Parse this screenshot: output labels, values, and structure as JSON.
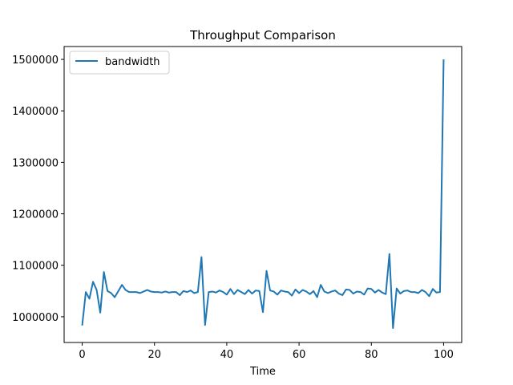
{
  "chart_data": {
    "type": "line",
    "title": "Throughput Comparison",
    "xlabel": "Time",
    "ylabel": "",
    "xlim": [
      -5,
      105
    ],
    "ylim": [
      950000,
      1525000
    ],
    "xticks": [
      0,
      20,
      40,
      60,
      80,
      100
    ],
    "xtick_labels": [
      "0",
      "20",
      "40",
      "60",
      "80",
      "100"
    ],
    "yticks": [
      1000000,
      1100000,
      1200000,
      1300000,
      1400000,
      1500000
    ],
    "ytick_labels": [
      "1000000",
      "1100000",
      "1200000",
      "1300000",
      "1400000",
      "1500000"
    ],
    "legend": {
      "position": "top-left"
    },
    "grid": false,
    "series": [
      {
        "name": "bandwidth",
        "color": "#1f77b4",
        "x": [
          0,
          1,
          2,
          3,
          4,
          5,
          6,
          7,
          8,
          9,
          10,
          11,
          12,
          13,
          14,
          15,
          16,
          17,
          18,
          19,
          20,
          21,
          22,
          23,
          24,
          25,
          26,
          27,
          28,
          29,
          30,
          31,
          32,
          33,
          34,
          35,
          36,
          37,
          38,
          39,
          40,
          41,
          42,
          43,
          44,
          45,
          46,
          47,
          48,
          49,
          50,
          51,
          52,
          53,
          54,
          55,
          56,
          57,
          58,
          59,
          60,
          61,
          62,
          63,
          64,
          65,
          66,
          67,
          68,
          69,
          70,
          71,
          72,
          73,
          74,
          75,
          76,
          77,
          78,
          79,
          80,
          81,
          82,
          83,
          84,
          85,
          86,
          87,
          88,
          89,
          90,
          91,
          92,
          93,
          94,
          95,
          96,
          97,
          98,
          99,
          100
        ],
        "y": [
          983000,
          1048000,
          1035000,
          1068000,
          1052000,
          1008000,
          1087000,
          1050000,
          1046000,
          1038000,
          1050000,
          1062000,
          1052000,
          1048000,
          1048000,
          1048000,
          1046000,
          1049000,
          1052000,
          1049000,
          1048000,
          1048000,
          1047000,
          1049000,
          1047000,
          1048000,
          1048000,
          1042000,
          1050000,
          1048000,
          1051000,
          1046000,
          1048000,
          1116000,
          984000,
          1048000,
          1049000,
          1047000,
          1051000,
          1048000,
          1043000,
          1054000,
          1044000,
          1052000,
          1048000,
          1044000,
          1052000,
          1045000,
          1051000,
          1050000,
          1009000,
          1089000,
          1051000,
          1049000,
          1043000,
          1051000,
          1049000,
          1048000,
          1041000,
          1053000,
          1046000,
          1052000,
          1049000,
          1044000,
          1050000,
          1038000,
          1062000,
          1049000,
          1046000,
          1049000,
          1051000,
          1045000,
          1042000,
          1053000,
          1052000,
          1045000,
          1049000,
          1048000,
          1043000,
          1055000,
          1054000,
          1047000,
          1052000,
          1047000,
          1044000,
          1122000,
          978000,
          1055000,
          1045000,
          1050000,
          1051000,
          1048000,
          1048000,
          1046000,
          1052000,
          1048000,
          1040000,
          1054000,
          1047000,
          1048000,
          1500000
        ]
      }
    ]
  }
}
